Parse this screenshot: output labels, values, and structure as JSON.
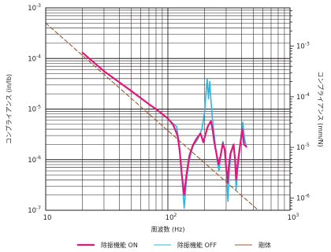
{
  "chart_data": {
    "type": "line",
    "xlabel": "周波数 (Hz)",
    "ylabel_left": "コンプライアンス (in/lb)",
    "ylabel_right": "コンプライアンス (mm/N)",
    "x_scale": "log",
    "y_scale": "log",
    "xlim": [
      10,
      1000
    ],
    "ylim_left": [
      1e-07,
      0.001
    ],
    "ylim_right_mm_per_N": [
      5.71e-07,
      0.00571
    ],
    "grid": true,
    "legend_position": "bottom",
    "x_ticks": [
      {
        "base": "10",
        "exp": ""
      },
      {
        "base": "10",
        "exp": "2"
      },
      {
        "base": "10",
        "exp": "3"
      }
    ],
    "y_ticks_left": [
      {
        "base": "10",
        "exp": "-3"
      },
      {
        "base": "10",
        "exp": "-4"
      },
      {
        "base": "10",
        "exp": "-5"
      },
      {
        "base": "10",
        "exp": "-6"
      },
      {
        "base": "10",
        "exp": "-7"
      }
    ],
    "y_ticks_right": [
      {
        "base": "10",
        "exp": "-3"
      },
      {
        "base": "10",
        "exp": "-4"
      },
      {
        "base": "10",
        "exp": "-5"
      },
      {
        "base": "10",
        "exp": "-6"
      }
    ],
    "series": [
      {
        "name": "除振機能 ON",
        "color": "#e0187d",
        "style": "solid",
        "points": [
          [
            20,
            0.00013
          ],
          [
            25,
            8.2e-05
          ],
          [
            30,
            5.6e-05
          ],
          [
            40,
            3.4e-05
          ],
          [
            50,
            2.3e-05
          ],
          [
            60,
            1.65e-05
          ],
          [
            70,
            1.25e-05
          ],
          [
            80,
            1e-05
          ],
          [
            90,
            8e-06
          ],
          [
            100,
            6.5e-06
          ],
          [
            110,
            5e-06
          ],
          [
            120,
            3e-06
          ],
          [
            125,
            1.5e-06
          ],
          [
            130,
            5e-07
          ],
          [
            136,
            2e-07
          ],
          [
            142,
            5e-07
          ],
          [
            150,
            1.2e-06
          ],
          [
            160,
            1.9e-06
          ],
          [
            170,
            2.5e-06
          ],
          [
            185,
            3.3e-06
          ],
          [
            195,
            2.2e-06
          ],
          [
            202,
            3e-06
          ],
          [
            212,
            4.5e-06
          ],
          [
            225,
            5.8e-06
          ],
          [
            232,
            4e-06
          ],
          [
            240,
            2.2e-06
          ],
          [
            250,
            1.3e-06
          ],
          [
            260,
            8e-07
          ],
          [
            270,
            1.2e-06
          ],
          [
            282,
            2.1e-06
          ],
          [
            292,
            1.6e-06
          ],
          [
            300,
            7e-07
          ],
          [
            308,
            3.5e-07
          ],
          [
            315,
            7e-07
          ],
          [
            325,
            1.3e-06
          ],
          [
            345,
            2e-06
          ],
          [
            355,
            1e-06
          ],
          [
            362,
            4e-07
          ],
          [
            370,
            7e-07
          ],
          [
            380,
            1.2e-06
          ],
          [
            395,
            2.4e-06
          ],
          [
            405,
            4e-06
          ],
          [
            420,
            2e-06
          ],
          [
            440,
            1.8e-06
          ]
        ]
      },
      {
        "name": "除振機能 OFF",
        "color": "#29b8e5",
        "style": "solid",
        "points": [
          [
            20,
            0.00013
          ],
          [
            25,
            8.2e-05
          ],
          [
            30,
            5.6e-05
          ],
          [
            40,
            3.4e-05
          ],
          [
            50,
            2.3e-05
          ],
          [
            60,
            1.65e-05
          ],
          [
            70,
            1.25e-05
          ],
          [
            80,
            1e-05
          ],
          [
            90,
            8e-06
          ],
          [
            100,
            6.5e-06
          ],
          [
            110,
            5.2e-06
          ],
          [
            118,
            4.5e-06
          ],
          [
            124,
            2e-06
          ],
          [
            130,
            5e-07
          ],
          [
            136,
            1.1e-07
          ],
          [
            142,
            4e-07
          ],
          [
            150,
            1e-06
          ],
          [
            160,
            1.8e-06
          ],
          [
            175,
            2.5e-06
          ],
          [
            190,
            4e-06
          ],
          [
            200,
            9e-06
          ],
          [
            205,
            2e-05
          ],
          [
            210,
            4e-05
          ],
          [
            215,
            1.6e-05
          ],
          [
            220,
            3.5e-05
          ],
          [
            225,
            1.5e-05
          ],
          [
            232,
            6e-06
          ],
          [
            240,
            3e-06
          ],
          [
            250,
            1.2e-06
          ],
          [
            262,
            6e-07
          ],
          [
            272,
            1.3e-06
          ],
          [
            282,
            2.3e-06
          ],
          [
            292,
            1.5e-06
          ],
          [
            302,
            5e-07
          ],
          [
            310,
            1.5e-07
          ],
          [
            318,
            6e-07
          ],
          [
            328,
            1.3e-06
          ],
          [
            345,
            2e-06
          ],
          [
            356,
            8e-07
          ],
          [
            362,
            2.5e-07
          ],
          [
            372,
            6e-07
          ],
          [
            385,
            1.3e-06
          ],
          [
            400,
            3e-06
          ],
          [
            410,
            5.5e-06
          ],
          [
            425,
            2.5e-06
          ],
          [
            440,
            1.8e-06
          ]
        ]
      },
      {
        "name": "剛体",
        "color": "#9a5a2e",
        "style": "dashed",
        "points": [
          [
            10,
            0.0005
          ],
          [
            550,
            1e-07
          ]
        ]
      }
    ]
  }
}
